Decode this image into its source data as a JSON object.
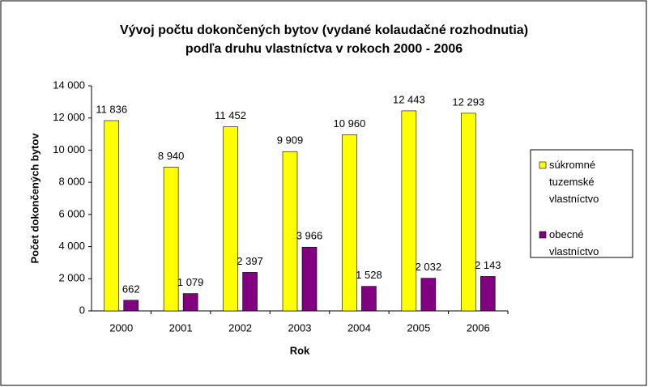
{
  "chart_data": {
    "type": "bar",
    "title": "Vývoj počtu dokončených bytov (vydané kolaudačné rozhodnutia)",
    "subtitle": "podľa druhu vlastníctva v rokoch 2000 - 2006",
    "x_label": "Rok",
    "y_label": "Počet dokončených bytov",
    "categories": [
      "2000",
      "2001",
      "2002",
      "2003",
      "2004",
      "2005",
      "2006"
    ],
    "series": [
      {
        "name": "súkromné tuzemské vlastníctvo",
        "color": "#ffff00",
        "values": [
          11836,
          8940,
          11452,
          9909,
          10960,
          12443,
          12293
        ],
        "value_labels": [
          "11 836",
          "8 940",
          "11 452",
          "9 909",
          "10 960",
          "12 443",
          "12 293"
        ]
      },
      {
        "name": "obecné vlastníctvo",
        "color": "#800080",
        "values": [
          662,
          1079,
          2397,
          3966,
          1528,
          2032,
          2143
        ],
        "value_labels": [
          "662",
          "1 079",
          "2 397",
          "3 966",
          "1 528",
          "2 032",
          "2 143"
        ]
      }
    ],
    "ylim": [
      0,
      14000
    ],
    "yticks": [
      0,
      {
        "value": 2000,
        "label": "2 000"
      },
      {
        "value": 4000,
        "label": "4 000"
      },
      {
        "value": 6000,
        "label": "6 000"
      },
      {
        "value": 8000,
        "label": "8 000"
      },
      {
        "value": 10000,
        "label": "10 000"
      },
      {
        "value": 12000,
        "label": "12 000"
      },
      {
        "value": 14000,
        "label": "14 000"
      }
    ],
    "grid": false,
    "legend": "right"
  }
}
